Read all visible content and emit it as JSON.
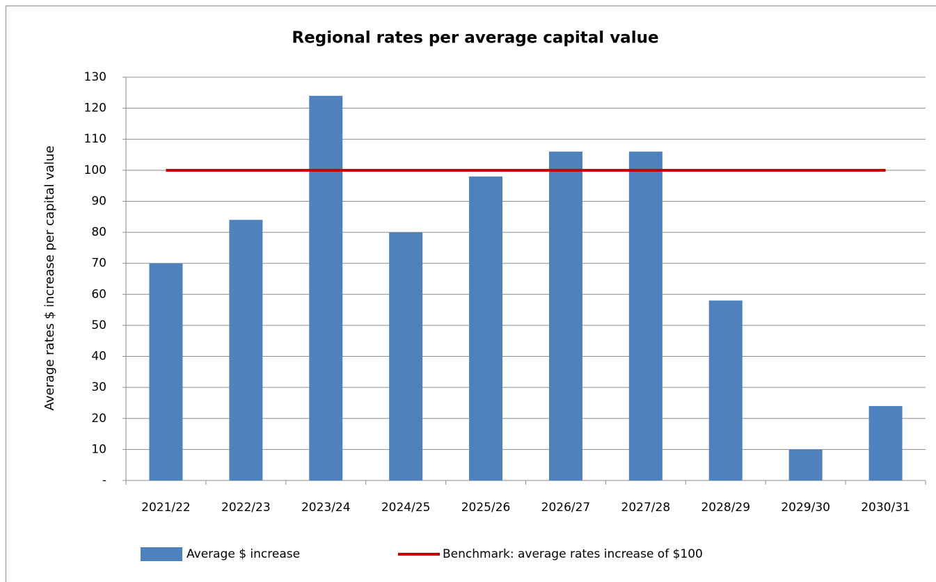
{
  "chart_data": {
    "type": "bar",
    "title": "Regional rates per average capital value",
    "y_label": "Average rates $ increase per capital value",
    "categories": [
      "2021/22",
      "2022/23",
      "2023/24",
      "2024/25",
      "2025/26",
      "2026/27",
      "2027/28",
      "2028/29",
      "2029/30",
      "2030/31"
    ],
    "series": [
      {
        "name": "Average $ increase",
        "type": "bar",
        "color": "#4f81bd",
        "values": [
          70,
          84,
          124,
          80,
          98,
          106,
          106,
          58,
          10,
          24
        ]
      },
      {
        "name": "Benchmark: average rates increase of $100",
        "type": "line",
        "color": "#c00000",
        "values": [
          100,
          100,
          100,
          100,
          100,
          100,
          100,
          100,
          100,
          100
        ]
      }
    ],
    "ylim": [
      0,
      130
    ],
    "yticks": [
      {
        "value": 0,
        "label": "-"
      },
      10,
      20,
      30,
      40,
      50,
      60,
      70,
      80,
      90,
      100,
      110,
      120,
      130
    ],
    "grid": true,
    "legend": "bottom"
  }
}
